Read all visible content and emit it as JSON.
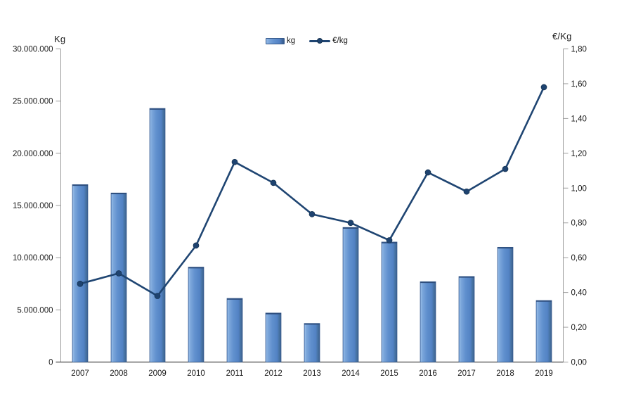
{
  "page": {
    "background": "#ffffff"
  },
  "chart_data": {
    "type": "combo",
    "title": "",
    "categories": [
      "2007",
      "2008",
      "2009",
      "2010",
      "2011",
      "2012",
      "2013",
      "2014",
      "2015",
      "2016",
      "2017",
      "2018",
      "2019"
    ],
    "series": [
      {
        "name": "kg",
        "type": "bar",
        "axis": "left",
        "color": "#5b87c7",
        "values": [
          17000000,
          16200000,
          24300000,
          9100000,
          6100000,
          4700000,
          3700000,
          12900000,
          11500000,
          7700000,
          8200000,
          11000000,
          5900000
        ]
      },
      {
        "name": "€/kg",
        "type": "line",
        "axis": "right",
        "color": "#1f4572",
        "values": [
          0.45,
          0.51,
          0.38,
          0.67,
          1.15,
          1.03,
          0.85,
          0.8,
          0.7,
          1.09,
          0.98,
          1.11,
          1.58
        ]
      }
    ],
    "left_axis": {
      "title": "Kg",
      "min": 0,
      "max": 30000000,
      "step": 5000000,
      "tick_labels": [
        "30.000.000",
        "25.000.000",
        "20.000.000",
        "15.000.000",
        "10.000.000",
        "5.000.000",
        "0"
      ]
    },
    "right_axis": {
      "title": "€/Kg",
      "min": 0,
      "max": 1.8,
      "step": 0.2,
      "tick_labels": [
        "1,80",
        "1,60",
        "1,40",
        "1,20",
        "1,00",
        "0,80",
        "0,60",
        "0,40",
        "0,20",
        "0,00"
      ]
    },
    "legend": {
      "position": "top",
      "entries": [
        "kg",
        "€/kg"
      ]
    },
    "grid": false,
    "colors": {
      "bar_main": "#5b87c7",
      "bar_light": "#94bae7",
      "bar_dark": "#3a5f91",
      "bar_border": "#36598a",
      "bar_top_bevel": "#2e4e7e",
      "line": "#1f4572",
      "marker_fill": "#1e4370",
      "marker_edge": "#16324f",
      "axis_line": "#9c9c9c",
      "x_axis_line": "#454545",
      "text": "#1a1a1a"
    }
  }
}
